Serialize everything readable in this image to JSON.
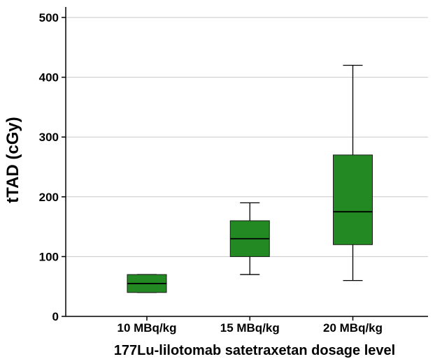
{
  "chart_data": {
    "type": "box",
    "title": "",
    "xlabel": "177Lu-lilotomab satetraxetan dosage level",
    "ylabel": "tTAD (cGy)",
    "ylim": [
      0,
      520
    ],
    "yticks": [
      0,
      100,
      200,
      300,
      400,
      500
    ],
    "grid": "horizontal",
    "box_color": "#238a23",
    "categories": [
      "10 MBq/kg",
      "15 MBq/kg",
      "20 MBq/kg"
    ],
    "boxes": [
      {
        "category": "10 MBq/kg",
        "whisker_low": 40,
        "q1": 40,
        "median": 55,
        "q3": 70,
        "whisker_high": 70
      },
      {
        "category": "15 MBq/kg",
        "whisker_low": 70,
        "q1": 100,
        "median": 130,
        "q3": 160,
        "whisker_high": 190
      },
      {
        "category": "20 MBq/kg",
        "whisker_low": 60,
        "q1": 120,
        "median": 175,
        "q3": 270,
        "whisker_high": 420
      }
    ]
  }
}
